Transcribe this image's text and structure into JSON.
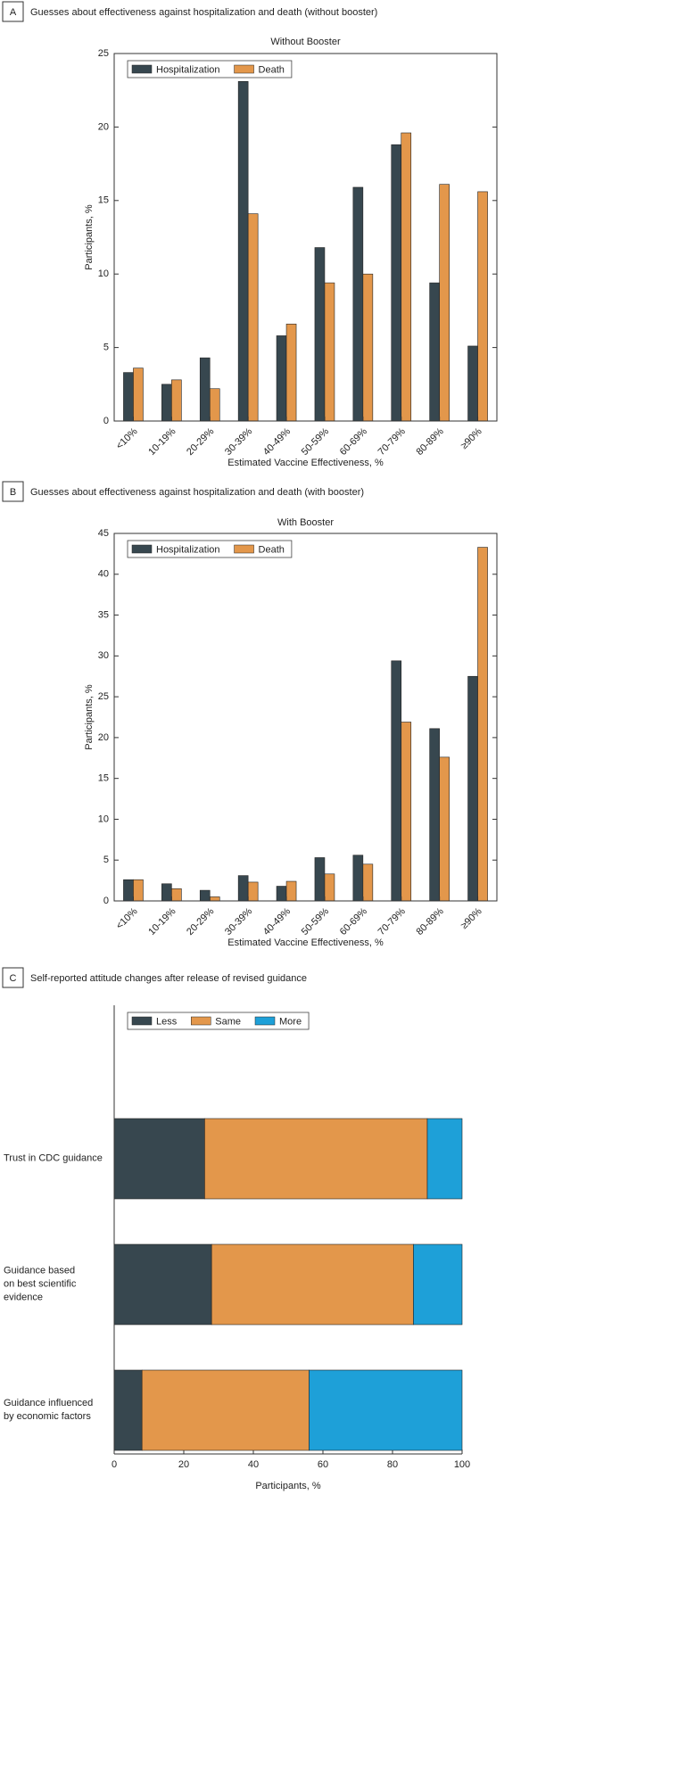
{
  "chart_data": [
    {
      "type": "bar",
      "panel_label": "A",
      "heading": "Guesses about effectiveness against hospitalization and death (without booster)",
      "title": "Without Booster",
      "xlabel": "Estimated Vaccine Effectiveness, %",
      "ylabel": "Participants, %",
      "categories": [
        "<10%",
        "10-19%",
        "20-29%",
        "30-39%",
        "40-49%",
        "50-59%",
        "60-69%",
        "70-79%",
        "80-89%",
        "≥90%"
      ],
      "series": [
        {
          "name": "Hospitalization",
          "color": "#37474f",
          "values": [
            3.3,
            2.5,
            4.3,
            23.1,
            5.8,
            11.8,
            15.9,
            18.8,
            9.4,
            5.1
          ]
        },
        {
          "name": "Death",
          "color": "#e3974b",
          "values": [
            3.6,
            2.8,
            2.2,
            14.1,
            6.6,
            9.4,
            10.0,
            19.6,
            16.1,
            15.6
          ]
        }
      ],
      "ylim": [
        0,
        25
      ],
      "yticks": [
        0,
        5,
        10,
        15,
        20,
        25
      ],
      "grid": false,
      "legend": "upper left"
    },
    {
      "type": "bar",
      "panel_label": "B",
      "heading": "Guesses about effectiveness against hospitalization and death (with booster)",
      "title": "With Booster",
      "xlabel": "Estimated Vaccine Effectiveness, %",
      "ylabel": "Participants, %",
      "categories": [
        "<10%",
        "10-19%",
        "20-29%",
        "30-39%",
        "40-49%",
        "50-59%",
        "60-69%",
        "70-79%",
        "80-89%",
        "≥90%"
      ],
      "series": [
        {
          "name": "Hospitalization",
          "color": "#37474f",
          "values": [
            2.6,
            2.1,
            1.3,
            3.1,
            1.8,
            5.3,
            5.6,
            29.4,
            21.1,
            27.5
          ]
        },
        {
          "name": "Death",
          "color": "#e3974b",
          "values": [
            2.6,
            1.5,
            0.5,
            2.3,
            2.4,
            3.3,
            4.5,
            21.9,
            17.6,
            43.3
          ]
        }
      ],
      "ylim": [
        0,
        45
      ],
      "yticks": [
        0,
        5,
        10,
        15,
        20,
        25,
        30,
        35,
        40,
        45
      ],
      "grid": false,
      "legend": "upper left"
    },
    {
      "type": "bar",
      "orientation": "horizontal",
      "stacked": true,
      "panel_label": "C",
      "heading": "Self-reported attitude changes after release of revised guidance",
      "xlabel": "Participants, %",
      "categories": [
        "Trust in CDC guidance",
        "Guidance based\non best scientific\nevidence",
        "Guidance influenced\nby economic factors"
      ],
      "series": [
        {
          "name": "Less",
          "color": "#37474f",
          "values": [
            26,
            28,
            8
          ]
        },
        {
          "name": "Same",
          "color": "#e3974b",
          "values": [
            64,
            58,
            48
          ]
        },
        {
          "name": "More",
          "color": "#1ea0d8",
          "values": [
            10,
            14,
            44
          ]
        }
      ],
      "xlim": [
        0,
        100
      ],
      "xticks": [
        0,
        20,
        40,
        60,
        80,
        100
      ],
      "grid": false,
      "legend": "upper left"
    }
  ]
}
